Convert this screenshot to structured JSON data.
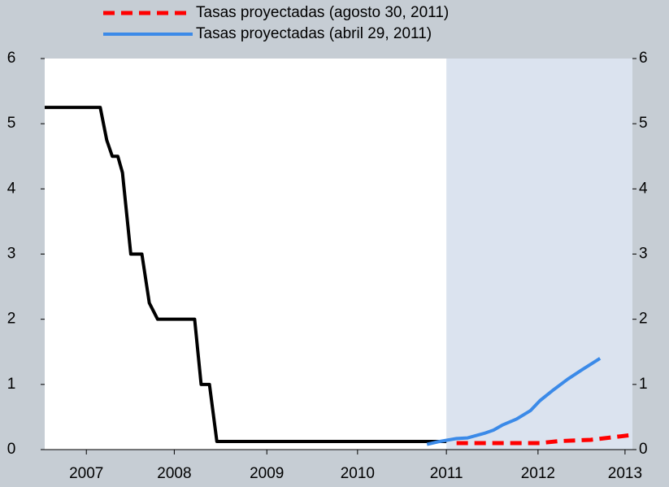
{
  "chart_data": {
    "type": "line",
    "xlim": [
      2007.05,
      2013.4
    ],
    "ylim": [
      0,
      6
    ],
    "yticks": [
      0,
      1,
      2,
      3,
      4,
      5,
      6
    ],
    "y2lim": [
      0,
      6
    ],
    "y2ticks": [
      0,
      1,
      2,
      3,
      4,
      5,
      6
    ],
    "xticks": [
      {
        "value": 2007.5,
        "label": "2007"
      },
      {
        "value": 2008.45,
        "label": "2008"
      },
      {
        "value": 2009.45,
        "label": "2009"
      },
      {
        "value": 2010.43,
        "label": "2010"
      },
      {
        "value": 2011.39,
        "label": "2011"
      },
      {
        "value": 2012.38,
        "label": "2012"
      },
      {
        "value": 2013.32,
        "label": "2013"
      }
    ],
    "shade_start": 2011.39,
    "shade_color": "#dbe3ef",
    "series": [
      {
        "color": "#000000",
        "x": [
          2007.05,
          2007.65,
          2007.72,
          2007.78,
          2007.84,
          2007.89,
          2007.98,
          2008.1,
          2008.18,
          2008.27,
          2008.67,
          2008.74,
          2008.83,
          2008.91,
          2011.39
        ],
        "values": [
          5.25,
          5.25,
          4.75,
          4.5,
          4.5,
          4.25,
          3.0,
          3.0,
          2.25,
          2.0,
          2.0,
          1.0,
          1.0,
          0.125,
          0.125
        ]
      },
      {
        "name": "Tasas proyectadas (agosto 30, 2011)",
        "color": "#ff0000",
        "dash": true,
        "x": [
          2011.5,
          2012.4,
          2012.6,
          2012.95,
          2013.37
        ],
        "values": [
          0.1,
          0.1,
          0.13,
          0.15,
          0.22
        ]
      },
      {
        "name": "Tasas proyectadas (abril 29, 2011)",
        "color": "#3b8ae8",
        "x": [
          2011.18,
          2011.3,
          2011.5,
          2011.62,
          2011.8,
          2011.9,
          2012.0,
          2012.15,
          2012.3,
          2012.4,
          2012.55,
          2012.7,
          2012.85,
          2013.05
        ],
        "values": [
          0.08,
          0.12,
          0.17,
          0.18,
          0.25,
          0.3,
          0.38,
          0.47,
          0.6,
          0.75,
          0.92,
          1.08,
          1.22,
          1.4
        ]
      }
    ]
  }
}
